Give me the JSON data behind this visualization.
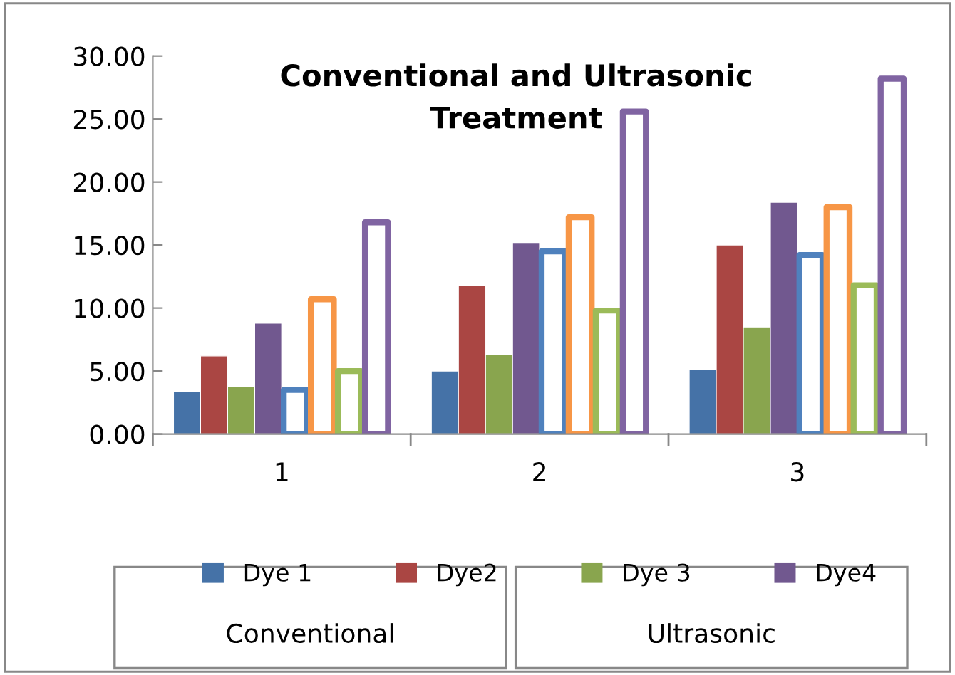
{
  "chart_data": {
    "type": "bar",
    "title": "Conventional and Ultrasonic\nTreatment",
    "categories": [
      "1",
      "2",
      "3"
    ],
    "series": [
      {
        "name": "Dye 1",
        "color": "#4572a7",
        "values": [
          3.4,
          5.0,
          5.1
        ]
      },
      {
        "name": "Dye2",
        "color": "#aa4643",
        "values": [
          6.2,
          11.8,
          15.0
        ]
      },
      {
        "name": "Dye 3",
        "color": "#89a54e",
        "values": [
          3.8,
          6.3,
          8.5
        ]
      },
      {
        "name": "Dye4",
        "color": "#71588f",
        "values": [
          8.8,
          15.2,
          18.4
        ]
      },
      {
        "color": "#4f81bd",
        "values": [
          3.5,
          14.5,
          14.2
        ]
      },
      {
        "color": "#f79646",
        "values": [
          10.7,
          17.2,
          18.0
        ]
      },
      {
        "color": "#9bbb59",
        "values": [
          5.0,
          9.8,
          11.8
        ]
      },
      {
        "color": "#8064a2",
        "values": [
          16.8,
          25.6,
          28.2
        ]
      }
    ],
    "ylim": [
      0,
      30
    ],
    "yticks": [
      {
        "value": 0,
        "label": "0.00"
      },
      {
        "value": 5,
        "label": "5.00"
      },
      {
        "value": 10,
        "label": "10.00"
      },
      {
        "value": 15,
        "label": "15.00"
      },
      {
        "value": 20,
        "label": "20.00"
      },
      {
        "value": 25,
        "label": "25.00"
      },
      {
        "value": 30,
        "label": "30.00"
      }
    ],
    "grid": false,
    "legend": "bottom",
    "annotations": [
      "Conventional",
      "Ultrasonic"
    ]
  }
}
